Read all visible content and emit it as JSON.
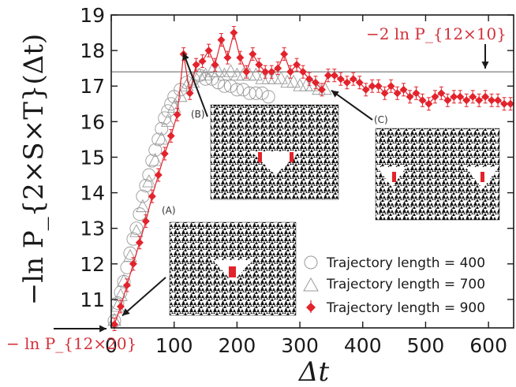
{
  "chart_data": {
    "type": "scatter",
    "title": "",
    "xlabel": "Δt",
    "ylabel": "−ln P_{2×S×T}(Δt)",
    "xlim": [
      0,
      640
    ],
    "ylim": [
      10.2,
      19
    ],
    "xticks": [
      0,
      100,
      200,
      300,
      400,
      500,
      600
    ],
    "yticks": [
      11,
      12,
      13,
      14,
      15,
      16,
      17,
      18,
      19
    ],
    "grid": false,
    "legend_position": "bottom-right",
    "reference_line": {
      "y": 17.4,
      "label": "−2 ln P_{12×10}"
    },
    "lower_annotation": {
      "y": 10.2,
      "label": "− ln P_{12×20}"
    },
    "series": [
      {
        "name": "Trajectory length = 400",
        "marker": "circle",
        "color": "#999999",
        "x": [
          5,
          10,
          15,
          20,
          25,
          30,
          35,
          40,
          45,
          50,
          55,
          60,
          65,
          70,
          75,
          80,
          85,
          90,
          95,
          100,
          110,
          120,
          130,
          140,
          150,
          160,
          170,
          180,
          190,
          200,
          210,
          220,
          230,
          240,
          250
        ],
        "y": [
          10.4,
          10.9,
          11.2,
          11.5,
          11.9,
          12.3,
          12.7,
          13.0,
          13.4,
          13.9,
          14.2,
          14.5,
          14.9,
          15.2,
          15.5,
          15.8,
          16.1,
          16.3,
          16.5,
          16.7,
          16.9,
          17.1,
          17.2,
          17.3,
          17.2,
          17.2,
          17.1,
          17.0,
          17.0,
          16.9,
          16.9,
          16.8,
          16.8,
          16.8,
          16.7
        ]
      },
      {
        "name": "Trajectory length = 700",
        "marker": "triangle",
        "color": "#999999",
        "x": [
          5,
          10,
          15,
          20,
          30,
          40,
          50,
          60,
          70,
          80,
          90,
          100,
          110,
          120,
          130,
          140,
          150,
          160,
          170,
          180,
          190,
          200,
          210,
          220,
          230,
          240,
          250,
          260,
          270,
          280,
          290,
          300,
          310,
          320,
          330,
          340
        ],
        "y": [
          10.4,
          10.8,
          11.1,
          11.5,
          12.2,
          12.9,
          13.6,
          14.3,
          14.9,
          15.5,
          16.0,
          16.4,
          16.7,
          17.0,
          17.1,
          17.3,
          17.3,
          17.4,
          17.4,
          17.3,
          17.4,
          17.3,
          17.3,
          17.3,
          17.3,
          17.2,
          17.2,
          17.2,
          17.2,
          17.1,
          17.1,
          17.0,
          17.0,
          17.0,
          16.9,
          16.9
        ]
      },
      {
        "name": "Trajectory length = 900",
        "marker": "diamond",
        "color": "#e3232c",
        "x": [
          5,
          15,
          25,
          35,
          45,
          55,
          65,
          75,
          85,
          95,
          105,
          115,
          125,
          135,
          145,
          155,
          165,
          175,
          185,
          195,
          205,
          215,
          225,
          235,
          245,
          255,
          265,
          275,
          285,
          295,
          305,
          315,
          325,
          335,
          345,
          355,
          365,
          375,
          385,
          395,
          405,
          415,
          425,
          435,
          445,
          455,
          465,
          475,
          485,
          495,
          505,
          515,
          525,
          535,
          545,
          555,
          565,
          575,
          585,
          595,
          605,
          615,
          625,
          635
        ],
        "y": [
          10.3,
          10.8,
          11.4,
          12.0,
          12.6,
          13.2,
          13.9,
          14.5,
          15.1,
          15.6,
          16.2,
          17.9,
          16.8,
          17.6,
          17.7,
          18.0,
          17.6,
          18.3,
          17.8,
          18.5,
          17.8,
          17.4,
          17.9,
          17.6,
          17.4,
          17.4,
          17.5,
          17.9,
          17.4,
          17.6,
          17.4,
          17.2,
          17.1,
          16.9,
          17.3,
          17.3,
          17.2,
          17.1,
          17.2,
          17.1,
          16.9,
          17.0,
          17.0,
          16.8,
          17.0,
          16.8,
          16.9,
          16.7,
          16.8,
          16.6,
          16.5,
          16.7,
          16.8,
          16.6,
          16.7,
          16.7,
          16.6,
          16.7,
          16.6,
          16.7,
          16.6,
          16.6,
          16.5,
          16.5
        ]
      }
    ]
  },
  "insets": [
    {
      "label": "(A)",
      "target_x": 10,
      "target_y": 10.5
    },
    {
      "label": "(B)",
      "target_x": 112,
      "target_y": 17.9
    },
    {
      "label": "(C)",
      "target_x": 345,
      "target_y": 16.9
    }
  ],
  "colors": {
    "accent": "#e3232c",
    "marker_gray": "#999999",
    "annotation": "#d3303a"
  }
}
